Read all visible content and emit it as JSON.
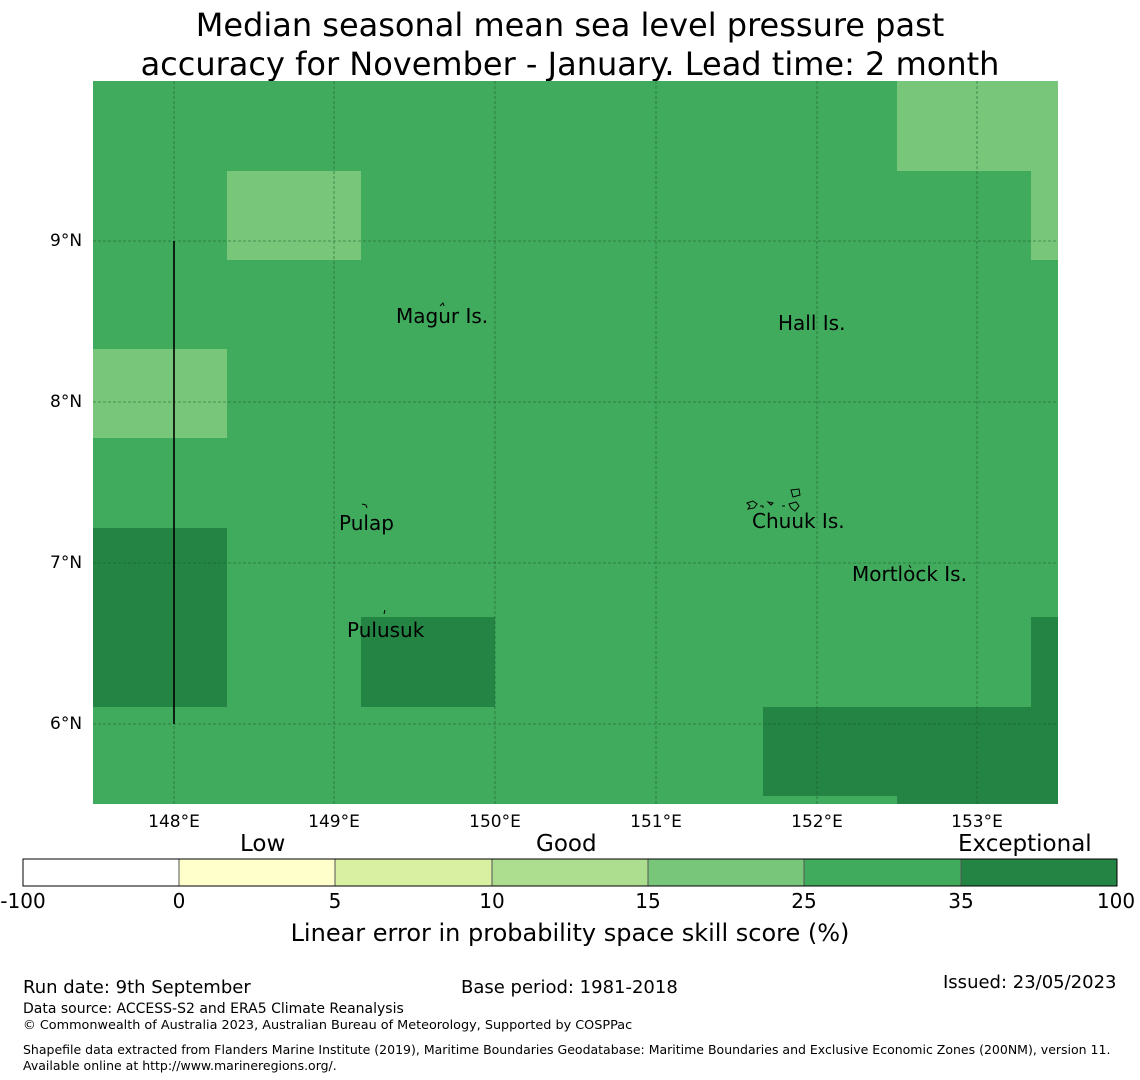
{
  "title_line1": "Median seasonal mean sea level pressure past",
  "title_line2": "accuracy for November - January. Lead time: 2 month",
  "map": {
    "lon_ticks": [
      "148°E",
      "149°E",
      "150°E",
      "151°E",
      "152°E",
      "153°E"
    ],
    "lat_ticks": [
      "9°N",
      "8°N",
      "7°N",
      "6°N"
    ],
    "colors": {
      "base": "#41ab5d",
      "light": "#78c679",
      "dark": "#238443",
      "grid": "#1a5c2c"
    },
    "places": [
      {
        "name": "Magur Is."
      },
      {
        "name": "Hall Is."
      },
      {
        "name": "Pulap"
      },
      {
        "name": "Chuuk Is."
      },
      {
        "name": "Mortlock Is."
      },
      {
        "name": "Pulusuk"
      }
    ]
  },
  "colorbar": {
    "categories": [
      "Low",
      "Good",
      "Exceptional"
    ],
    "ticks": [
      "-100",
      "0",
      "5",
      "10",
      "15",
      "25",
      "35",
      "100"
    ],
    "colors": [
      "#ffffff",
      "#ffffcc",
      "#d9f0a3",
      "#addd8e",
      "#78c679",
      "#41ab5d",
      "#238443"
    ],
    "label": "Linear error in probability space skill score (%)"
  },
  "footer": {
    "run_date": "Run date: 9th September",
    "base_period": "Base period: 1981-2018",
    "issued": "Issued: 23/05/2023",
    "data_source": "Data source: ACCESS-S2 and ERA5 Climate Reanalysis",
    "copyright": "© Commonwealth of Australia 2023, Australian Bureau of Meteorology, Supported by COSPPac",
    "shapefile": "Shapefile data extracted from Flanders Marine Institute (2019), Maritime Boundaries Geodatabase: Maritime Boundaries and Exclusive Economic Zones (200NM), version 11. Available online at http://www.marineregions.org/."
  }
}
